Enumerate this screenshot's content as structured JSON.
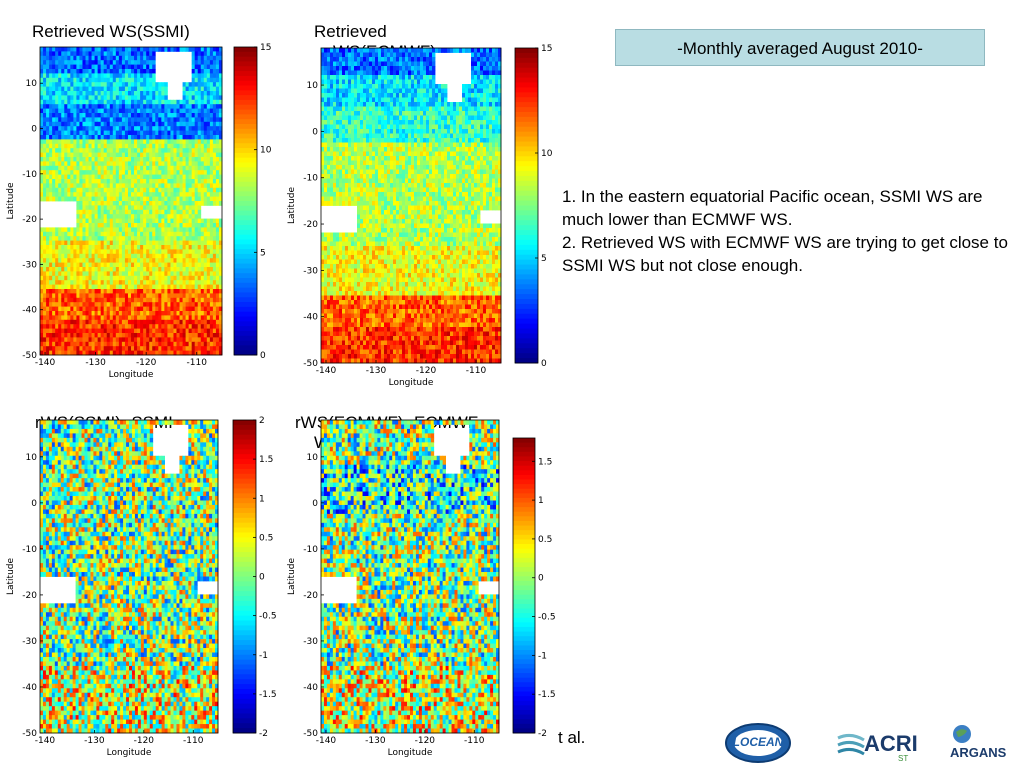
{
  "banner": "-Monthly averaged August 2010-",
  "notes": [
    "1. In the eastern equatorial Pacific ocean, SSMI WS are much lower than ECMWF WS.",
    "2. Retrieved WS with ECMWF WS are trying to get close to SSMI WS but not close enough."
  ],
  "footer_fragment": "t al.",
  "logos": {
    "locean": "LOCEAN",
    "acri": "ACRI",
    "acri_sub": "ST",
    "argans": "ARGANS"
  },
  "colors": {
    "banner_bg": "#b9dde3"
  },
  "chart_data": [
    {
      "type": "heatmap",
      "title_lines": [
        "Retrieved WS(SSMI)"
      ],
      "xlabel": "Longitude",
      "ylabel": "Latitude",
      "x_ticks": [
        "-140",
        "-130",
        "-120",
        "-110"
      ],
      "y_ticks": [
        "10",
        "0",
        "-10",
        "-20",
        "-30",
        "-40",
        "-50"
      ],
      "colorbar_ticks": [
        "15",
        "10",
        "5",
        "0"
      ],
      "xlim": [
        -141,
        -105
      ],
      "ylim": [
        -50,
        18
      ],
      "clim": [
        0,
        15
      ]
    },
    {
      "type": "heatmap",
      "title_lines": [
        "Retrieved",
        "WS(ECMWF)"
      ],
      "xlabel": "Longitude",
      "ylabel": "Latitude",
      "x_ticks": [
        "-140",
        "-130",
        "-120",
        "-110"
      ],
      "y_ticks": [
        "10",
        "0",
        "-10",
        "-20",
        "-30",
        "-40",
        "-50"
      ],
      "colorbar_ticks": [
        "15",
        "10",
        "5",
        "0"
      ],
      "xlim": [
        -141,
        -105
      ],
      "ylim": [
        -50,
        18
      ],
      "clim": [
        0,
        15
      ]
    },
    {
      "type": "heatmap",
      "title_lines": [
        "rWS(SSMI)- SSMI",
        "WS"
      ],
      "xlabel": "Longitude",
      "ylabel": "Latitude",
      "x_ticks": [
        "-140",
        "-130",
        "-120",
        "-110"
      ],
      "y_ticks": [
        "10",
        "0",
        "-10",
        "-20",
        "-30",
        "-40",
        "-50"
      ],
      "colorbar_ticks": [
        "2",
        "1.5",
        "1",
        "0.5",
        "0",
        "-0.5",
        "-1",
        "-1.5",
        "-2"
      ],
      "xlim": [
        -141,
        -105
      ],
      "ylim": [
        -50,
        18
      ],
      "clim": [
        -2,
        2
      ]
    },
    {
      "type": "heatmap",
      "title_lines": [
        "rWS(ECMWF)- ECMWF",
        "WS"
      ],
      "xlabel": "Longitude",
      "ylabel": "Latitude",
      "x_ticks": [
        "-140",
        "-130",
        "-120",
        "-110"
      ],
      "y_ticks": [
        "10",
        "0",
        "-10",
        "-20",
        "-30",
        "-40",
        "-50"
      ],
      "colorbar_ticks": [
        "1.5",
        "1",
        "0.5",
        "0",
        "-0.5",
        "-1",
        "-1.5",
        "-2"
      ],
      "xlim": [
        -141,
        -105
      ],
      "ylim": [
        -50,
        18
      ],
      "clim": [
        -2,
        1.8
      ]
    }
  ]
}
